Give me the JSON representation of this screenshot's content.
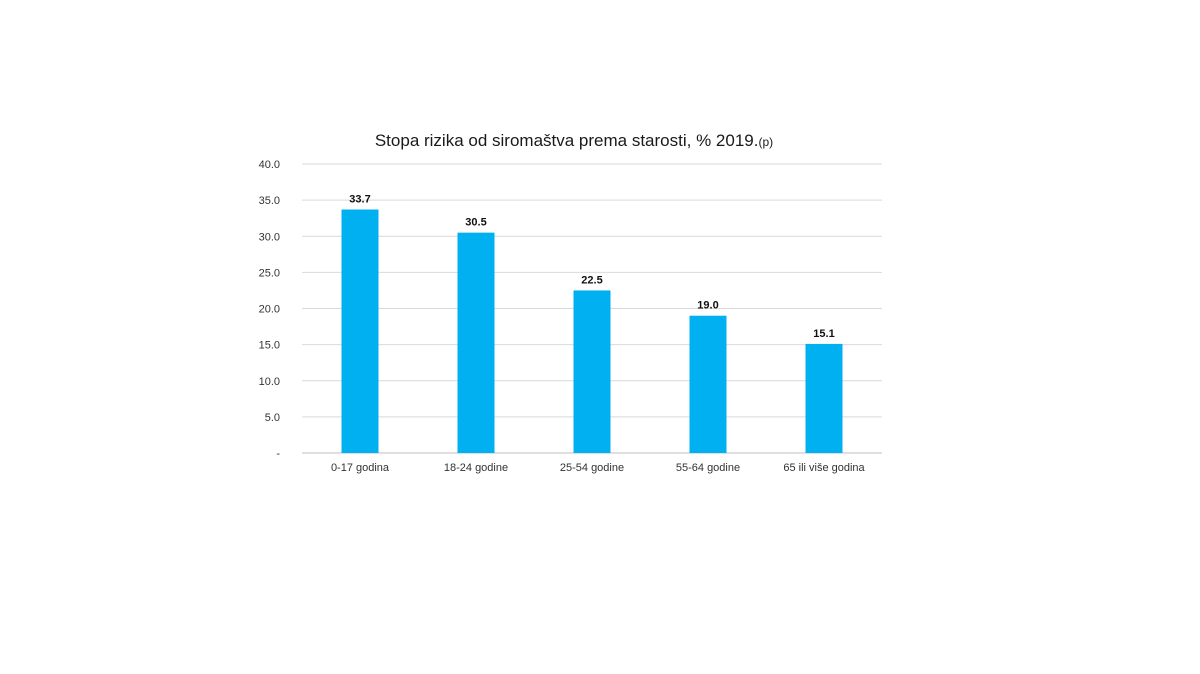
{
  "chart_data": {
    "type": "bar",
    "title": "Stopa rizika od siromaštva prema starosti, % 2019.",
    "title_suffix": "(p)",
    "categories": [
      "0-17 godina",
      "18-24 godine",
      "25-54 godine",
      "55-64 godine",
      "65 ili više godina"
    ],
    "values": [
      33.7,
      30.5,
      22.5,
      19.0,
      15.1
    ],
    "value_labels": [
      "33.7",
      "30.5",
      "22.5",
      "19.0",
      "15.1"
    ],
    "y_ticks": [
      {
        "value": 0,
        "label": "-"
      },
      {
        "value": 5,
        "label": "5.0"
      },
      {
        "value": 10,
        "label": "10.0"
      },
      {
        "value": 15,
        "label": "15.0"
      },
      {
        "value": 20,
        "label": "20.0"
      },
      {
        "value": 25,
        "label": "25.0"
      },
      {
        "value": 30,
        "label": "30.0"
      },
      {
        "value": 35,
        "label": "35.0"
      },
      {
        "value": 40,
        "label": "40.0"
      }
    ],
    "ylim": [
      0,
      40
    ],
    "grid": true,
    "bar_color": "#00b0f0"
  }
}
